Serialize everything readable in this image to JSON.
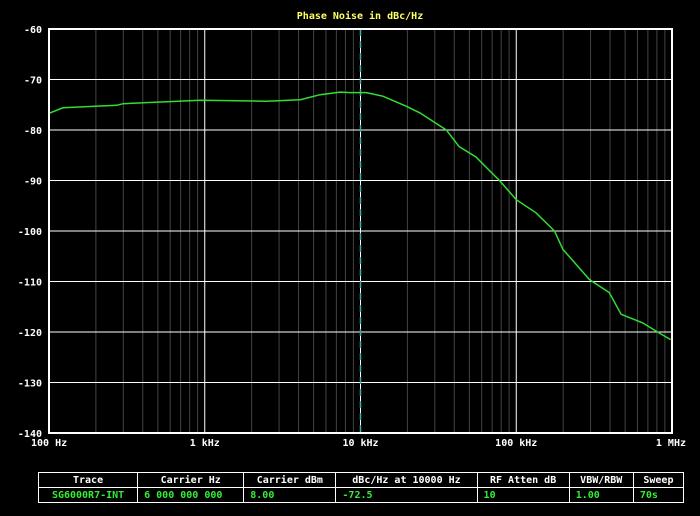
{
  "chart_data": {
    "type": "line",
    "title": "Phase Noise in dBc/Hz",
    "x_scale": "log",
    "xlim": [
      100,
      1000000
    ],
    "ylim": [
      -140,
      -60
    ],
    "x_tick_values": [
      100,
      1000,
      10000,
      100000,
      1000000
    ],
    "x_tick_labels": [
      "100 Hz",
      "1 kHz",
      "10 kHz",
      "100 kHz",
      "1 MHz"
    ],
    "y_ticks": [
      -60,
      -70,
      -80,
      -90,
      -100,
      -110,
      -120,
      -130,
      -140
    ],
    "grid": true,
    "marker_x": 10000,
    "colors": {
      "trace": "#33dd33",
      "marker": "#44aaaa",
      "grid": "#ffffff",
      "minor_grid": "#444444",
      "title": "#ffff66"
    },
    "series": [
      {
        "x": [
          100,
          123,
          272,
          299,
          933,
          2500,
          4100,
          5500,
          7400,
          8500,
          10900,
          13900,
          19700,
          24000,
          35600,
          43000,
          55000,
          78000,
          100000,
          134000,
          176000,
          199000,
          295000,
          396000,
          471000,
          648000,
          828000,
          980000
        ],
        "y": [
          -76.7,
          -75.6,
          -75.1,
          -74.8,
          -74.1,
          -74.3,
          -74.0,
          -73.0,
          -72.5,
          -72.6,
          -72.6,
          -73.3,
          -75.3,
          -76.6,
          -80.0,
          -83.3,
          -85.3,
          -90.0,
          -93.8,
          -96.4,
          -100.0,
          -103.6,
          -109.6,
          -112.2,
          -116.5,
          -118.2,
          -120.2,
          -121.5
        ]
      }
    ]
  },
  "table": {
    "headers": [
      "Trace",
      "Carrier Hz",
      "Carrier dBm",
      "dBc/Hz at 10000 Hz",
      "RF Atten dB",
      "VBW/RBW",
      "Sweep"
    ],
    "row": [
      "SG6000R7-INT",
      "6 000 000 000",
      "8.00",
      "-72.5",
      "10",
      "1.00",
      "70s"
    ]
  }
}
